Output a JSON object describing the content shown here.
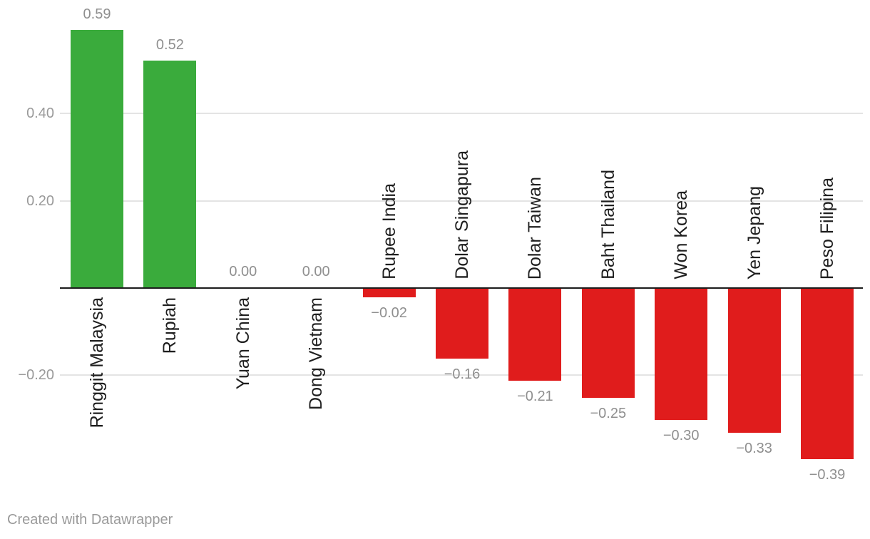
{
  "chart_data": {
    "type": "bar",
    "categories": [
      "Ringgit Malaysia",
      "Rupiah",
      "Yuan China",
      "Dong Vietnam",
      "Rupee India",
      "Dolar Singapura",
      "Dolar Taiwan",
      "Baht Thailand",
      "Won Korea",
      "Yen Jepang",
      "Peso Filipina"
    ],
    "values": [
      0.59,
      0.52,
      0.0,
      0.0,
      -0.02,
      -0.16,
      -0.21,
      -0.25,
      -0.3,
      -0.33,
      -0.39
    ],
    "value_labels": [
      "0.59",
      "0.52",
      "0.00",
      "0.00",
      "−0.02",
      "−0.16",
      "−0.21",
      "−0.25",
      "−0.30",
      "−0.33",
      "−0.39"
    ],
    "yticks": [
      {
        "value": 0.4,
        "label": "0.40"
      },
      {
        "value": 0.2,
        "label": "0.20"
      },
      {
        "value": -0.2,
        "label": "−0.20"
      }
    ],
    "ylim": [
      -0.46,
      0.66
    ],
    "title": "",
    "xlabel": "",
    "ylabel": "",
    "grid": true,
    "legend_position": "none",
    "colors": {
      "positive_bar": "#3aab3c",
      "negative_bar": "#e01c1c",
      "axis_line": "#1c1c1c",
      "gridline": "#e4e4e4",
      "value_label_text": "#8f8f8f",
      "tick_label_text": "#9a9a9a",
      "category_label_text": "#1f1f1f"
    }
  },
  "footer": {
    "credit": "Created with Datawrapper"
  }
}
